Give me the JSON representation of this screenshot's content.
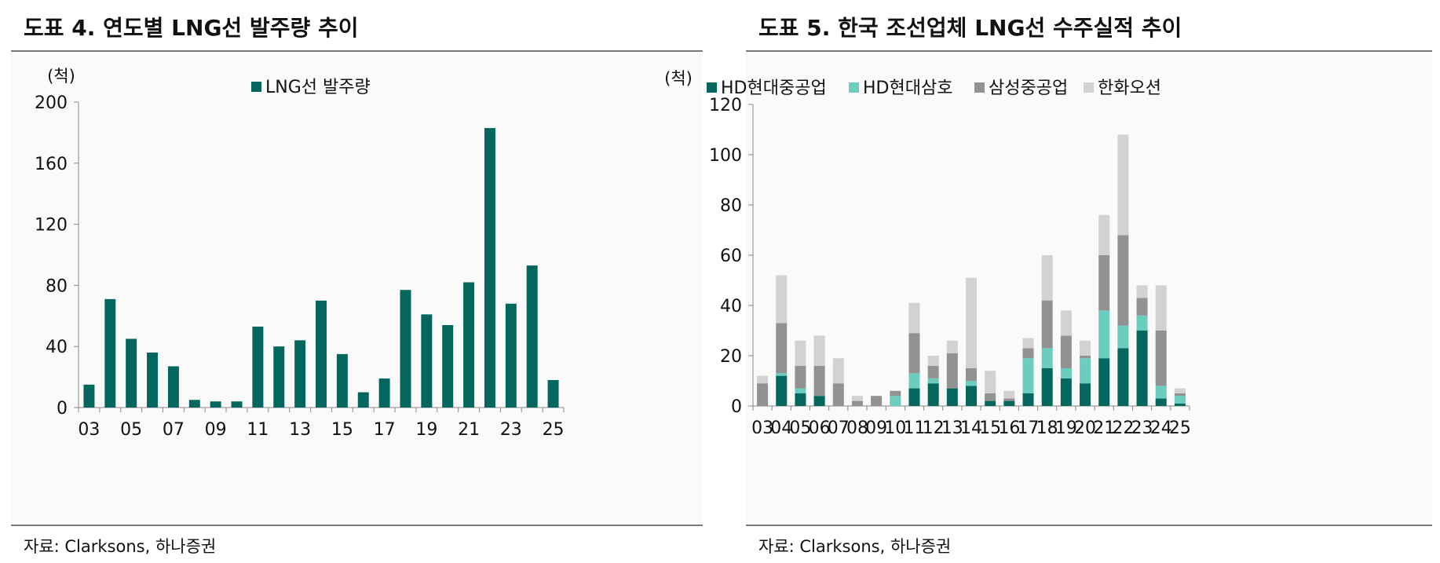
{
  "charts": [
    {
      "title": "도표 4. 연도별 LNG선 발주량 추이",
      "source": "자료: Clarksons, 하나증권"
    },
    {
      "title": "도표 5. 한국 조선업체 LNG선 수주실적 추이",
      "source": "자료: Clarksons, 하나증권"
    }
  ],
  "chart_data": [
    {
      "type": "bar",
      "title": "도표 4. 연도별 LNG선 발주량 추이",
      "ylabel": "(척)",
      "xlabel": "",
      "ylim": [
        0,
        200
      ],
      "yticks": [
        "0",
        "40",
        "80",
        "120",
        "160",
        "200"
      ],
      "categories": [
        "03",
        "04",
        "05",
        "06",
        "07",
        "08",
        "09",
        "10",
        "11",
        "12",
        "13",
        "14",
        "15",
        "16",
        "17",
        "18",
        "19",
        "20",
        "21",
        "22",
        "23",
        "24",
        "25"
      ],
      "x_tick_labels": [
        "03",
        "05",
        "07",
        "09",
        "11",
        "13",
        "15",
        "17",
        "19",
        "21",
        "23",
        "25"
      ],
      "series": [
        {
          "name": "LNG선 발주량",
          "color": "#04675d",
          "values": [
            15,
            71,
            45,
            36,
            27,
            5,
            4,
            4,
            53,
            40,
            44,
            70,
            35,
            10,
            19,
            77,
            61,
            54,
            82,
            183,
            68,
            93,
            18
          ]
        }
      ],
      "legend": "top-center",
      "grid": false
    },
    {
      "type": "bar",
      "stacked": true,
      "title": "도표 5. 한국 조선업체 LNG선 수주실적 추이",
      "ylabel": "(척)",
      "xlabel": "",
      "ylim": [
        0,
        120
      ],
      "yticks": [
        "0",
        "20",
        "40",
        "60",
        "80",
        "100",
        "120"
      ],
      "categories": [
        "03",
        "04",
        "05",
        "06",
        "07",
        "08",
        "09",
        "10",
        "11",
        "12",
        "13",
        "14",
        "15",
        "16",
        "17",
        "18",
        "19",
        "20",
        "21",
        "22",
        "23",
        "24",
        "25"
      ],
      "x_tick_labels": [
        "03",
        "04",
        "05",
        "06",
        "07",
        "08",
        "09",
        "10",
        "11",
        "12",
        "13",
        "14",
        "15",
        "16",
        "17",
        "18",
        "19",
        "20",
        "21",
        "22",
        "23",
        "24",
        "25"
      ],
      "series": [
        {
          "name": "HD현대중공업",
          "color": "#04675d",
          "values": [
            0,
            12,
            5,
            4,
            0,
            0,
            0,
            0,
            7,
            9,
            7,
            8,
            2,
            2,
            5,
            15,
            11,
            9,
            19,
            23,
            30,
            3,
            1
          ]
        },
        {
          "name": "HD현대삼호",
          "color": "#6acdbe",
          "values": [
            0,
            1,
            2,
            0,
            0,
            0,
            0,
            4,
            6,
            2,
            0,
            2,
            0,
            0,
            14,
            8,
            4,
            10,
            19,
            9,
            6,
            5,
            3
          ]
        },
        {
          "name": "삼성중공업",
          "color": "#929292",
          "values": [
            9,
            20,
            9,
            12,
            9,
            2,
            4,
            2,
            16,
            5,
            14,
            5,
            3,
            1,
            4,
            19,
            13,
            1,
            22,
            36,
            7,
            22,
            1
          ]
        },
        {
          "name": "한화오션",
          "color": "#d2d2d2",
          "values": [
            3,
            19,
            10,
            12,
            10,
            2,
            0,
            0,
            12,
            4,
            5,
            36,
            9,
            3,
            4,
            18,
            10,
            6,
            16,
            40,
            5,
            18,
            2
          ]
        }
      ],
      "legend": "top-center",
      "grid": false
    }
  ]
}
